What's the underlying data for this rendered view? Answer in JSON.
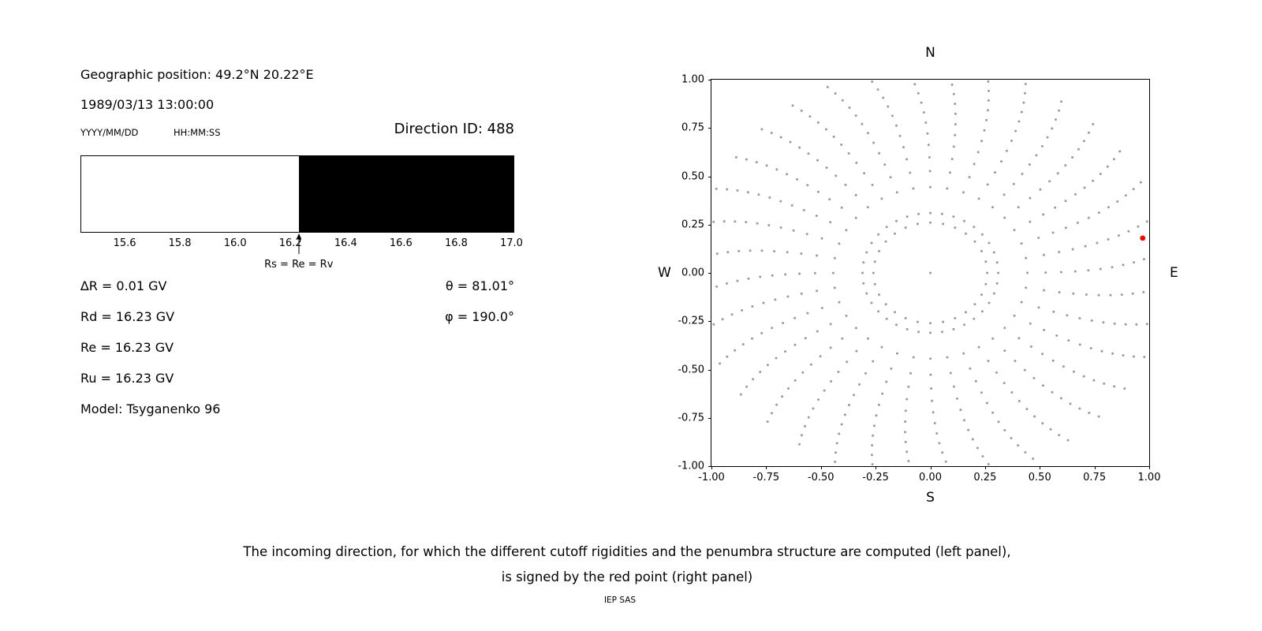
{
  "left_panel": {
    "geo_position": "Geographic position: 49.2°N 20.22°E",
    "datetime": "1989/03/13 13:00:00",
    "date_format_label": "YYYY/MM/DD",
    "time_format_label": "HH:MM:SS",
    "direction_id_label": "Direction ID: 488",
    "values_left": [
      "∆R = 0.01 GV",
      "Rd = 16.23 GV",
      "Re = 16.23 GV",
      "Ru = 16.23 GV",
      "Model: Tsyganenko 96"
    ],
    "values_right": [
      "θ = 81.01°",
      "φ = 190.0°"
    ]
  },
  "caption": {
    "line1": "The incoming direction, for which the different cutoff rigidities and the penumbra structure are computed (left panel),",
    "line2": "is signed by the red point (right panel)",
    "credit": "IEP SAS"
  },
  "chart_data": [
    {
      "type": "area",
      "x_range": [
        15.44,
        17.01
      ],
      "transition_x": 16.23,
      "xtick_values": [
        15.6,
        15.8,
        16.0,
        16.2,
        16.4,
        16.6,
        16.8,
        17.0
      ],
      "xticks": [
        "15.6",
        "15.8",
        "16.0",
        "16.2",
        "16.4",
        "16.6",
        "16.8",
        "17.0"
      ],
      "annotation": "Rs = Re = Rv",
      "annotation_x": 16.23,
      "allowed_color": "#ffffff",
      "forbidden_color": "#000000"
    },
    {
      "type": "scatter",
      "xlim": [
        -1.0,
        1.0
      ],
      "ylim": [
        -1.0,
        1.0
      ],
      "xtick_values": [
        -1.0,
        -0.75,
        -0.5,
        -0.25,
        0.0,
        0.25,
        0.5,
        0.75,
        1.0
      ],
      "xticks": [
        "-1.00",
        "-0.75",
        "-0.50",
        "-0.25",
        "0.00",
        "0.25",
        "0.50",
        "0.75",
        "1.00"
      ],
      "ytick_values": [
        -1.0,
        -0.75,
        -0.5,
        -0.25,
        0.0,
        0.25,
        0.5,
        0.75,
        1.0
      ],
      "yticks": [
        "-1.00",
        "-0.75",
        "-0.50",
        "-0.25",
        "0.00",
        "0.25",
        "0.50",
        "0.75",
        "1.00"
      ],
      "compass": {
        "top": "N",
        "bottom": "S",
        "left": "W",
        "right": "E"
      },
      "dot_color": "#9a9a9a",
      "pattern": {
        "spokes": 36,
        "inner_r": 0.31,
        "outer_r": 1.07,
        "points_per_spoke": 13,
        "radial_power": 0.7,
        "curvature_deg": 6,
        "ring_r": 0.26,
        "ring_points": 28,
        "center_point": true
      },
      "red_point": {
        "x": 0.97,
        "y": 0.18,
        "color": "#ff0000"
      }
    }
  ]
}
